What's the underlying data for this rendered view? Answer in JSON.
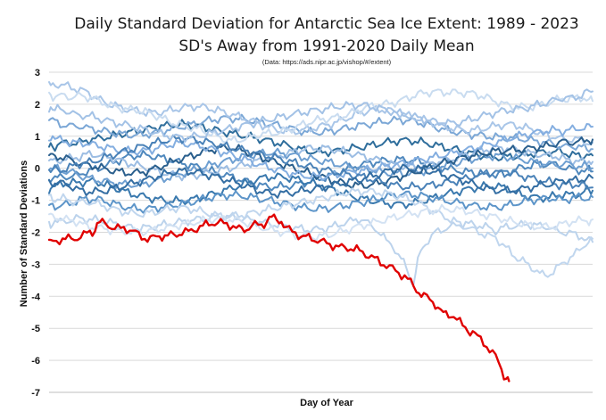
{
  "chart_data": {
    "type": "line",
    "title": "Daily Standard Deviation for Antarctic Sea Ice Extent: 1989 - 2023",
    "subtitle": "SD's Away from 1991-2020 Daily Mean",
    "source": "(Data: https://ads.nipr.ac.jp/vishop/#/extent)",
    "xlabel": "Day of Year",
    "ylabel": "Number of Standard Deviations",
    "xlim": [
      1,
      365
    ],
    "ylim": [
      -7,
      3
    ],
    "yticks": [
      "3",
      "2",
      "1",
      "0",
      "-1",
      "-2",
      "-3",
      "-4",
      "-5",
      "-6",
      "-7"
    ],
    "grid": true,
    "legend": "none",
    "highlight_color": "#e00000",
    "series": [
      {
        "color": "#e00000",
        "highlight": true,
        "values": [
          [
            1,
            -2.35
          ],
          [
            10,
            -2.2
          ],
          [
            20,
            -2.15
          ],
          [
            30,
            -1.95
          ],
          [
            35,
            -1.72
          ],
          [
            45,
            -1.9
          ],
          [
            55,
            -1.95
          ],
          [
            65,
            -2.2
          ],
          [
            75,
            -2.1
          ],
          [
            90,
            -2.0
          ],
          [
            100,
            -1.9
          ],
          [
            110,
            -1.75
          ],
          [
            120,
            -1.78
          ],
          [
            130,
            -1.95
          ],
          [
            135,
            -1.8
          ],
          [
            145,
            -1.7
          ],
          [
            150,
            -1.55
          ],
          [
            155,
            -1.62
          ],
          [
            160,
            -1.85
          ],
          [
            168,
            -2.05
          ],
          [
            175,
            -2.2
          ],
          [
            185,
            -2.35
          ],
          [
            195,
            -2.5
          ],
          [
            205,
            -2.55
          ],
          [
            215,
            -2.75
          ],
          [
            225,
            -3.0
          ],
          [
            235,
            -3.25
          ],
          [
            245,
            -3.65
          ],
          [
            252,
            -4.0
          ],
          [
            258,
            -4.2
          ],
          [
            265,
            -4.5
          ],
          [
            272,
            -4.65
          ],
          [
            278,
            -4.95
          ],
          [
            283,
            -5.05
          ],
          [
            288,
            -5.3
          ],
          [
            292,
            -5.45
          ],
          [
            296,
            -5.7
          ],
          [
            300,
            -5.9
          ],
          [
            304,
            -6.25
          ],
          [
            307,
            -6.55
          ],
          [
            309,
            -6.65
          ]
        ]
      },
      {
        "color": "#2f6e9c",
        "values": [
          [
            1,
            0.7
          ],
          [
            30,
            0.9
          ],
          [
            60,
            1.2
          ],
          [
            90,
            1.4
          ],
          [
            120,
            1.1
          ],
          [
            150,
            0.8
          ],
          [
            180,
            0.5
          ],
          [
            210,
            0.7
          ],
          [
            240,
            0.9
          ],
          [
            270,
            0.6
          ],
          [
            300,
            0.3
          ],
          [
            330,
            0.5
          ],
          [
            365,
            0.4
          ]
        ]
      },
      {
        "color": "#4f88bd",
        "values": [
          [
            1,
            -0.3
          ],
          [
            30,
            -0.1
          ],
          [
            60,
            0.4
          ],
          [
            90,
            0.2
          ],
          [
            120,
            -0.2
          ],
          [
            150,
            -0.6
          ],
          [
            180,
            -0.4
          ],
          [
            210,
            0.1
          ],
          [
            240,
            0.3
          ],
          [
            270,
            0.0
          ],
          [
            300,
            -0.2
          ],
          [
            330,
            0.1
          ],
          [
            365,
            -0.1
          ]
        ]
      },
      {
        "color": "#7ba7d6",
        "values": [
          [
            1,
            1.5
          ],
          [
            30,
            1.2
          ],
          [
            60,
            1.0
          ],
          [
            90,
            1.3
          ],
          [
            120,
            1.6
          ],
          [
            150,
            1.4
          ],
          [
            180,
            1.1
          ],
          [
            210,
            1.3
          ],
          [
            240,
            1.5
          ],
          [
            270,
            1.2
          ],
          [
            300,
            1.0
          ],
          [
            330,
            0.8
          ],
          [
            365,
            0.6
          ]
        ]
      },
      {
        "color": "#a9c6e8",
        "values": [
          [
            1,
            2.6
          ],
          [
            20,
            2.5
          ],
          [
            40,
            2.0
          ],
          [
            70,
            1.7
          ],
          [
            100,
            1.9
          ],
          [
            130,
            1.6
          ],
          [
            160,
            1.2
          ],
          [
            190,
            1.4
          ],
          [
            220,
            1.8
          ],
          [
            250,
            1.5
          ],
          [
            280,
            1.2
          ],
          [
            310,
            1.4
          ],
          [
            340,
            1.0
          ],
          [
            365,
            0.8
          ]
        ]
      },
      {
        "color": "#c9dcf0",
        "values": [
          [
            1,
            2.3
          ],
          [
            25,
            2.2
          ],
          [
            50,
            1.9
          ],
          [
            75,
            1.6
          ],
          [
            100,
            1.2
          ],
          [
            125,
            0.9
          ],
          [
            150,
            1.1
          ],
          [
            175,
            1.4
          ],
          [
            200,
            1.7
          ],
          [
            225,
            2.0
          ],
          [
            250,
            2.3
          ],
          [
            275,
            2.4
          ],
          [
            300,
            2.1
          ],
          [
            325,
            1.9
          ],
          [
            350,
            2.2
          ],
          [
            365,
            2.1
          ]
        ]
      },
      {
        "color": "#3a79ae",
        "values": [
          [
            1,
            -0.6
          ],
          [
            30,
            -0.4
          ],
          [
            60,
            -0.8
          ],
          [
            90,
            -1.0
          ],
          [
            120,
            -0.7
          ],
          [
            150,
            -0.3
          ],
          [
            180,
            -0.5
          ],
          [
            210,
            -0.9
          ],
          [
            240,
            -1.1
          ],
          [
            270,
            -0.8
          ],
          [
            300,
            -0.6
          ],
          [
            330,
            -0.9
          ],
          [
            365,
            -0.7
          ]
        ]
      },
      {
        "color": "#9cbde3",
        "values": [
          [
            1,
            0.2
          ],
          [
            30,
            0.4
          ],
          [
            60,
            0.1
          ],
          [
            90,
            -0.2
          ],
          [
            120,
            0.0
          ],
          [
            150,
            0.3
          ],
          [
            180,
            0.6
          ],
          [
            210,
            0.4
          ],
          [
            240,
            0.1
          ],
          [
            270,
            0.3
          ],
          [
            300,
            0.6
          ],
          [
            330,
            0.4
          ],
          [
            365,
            0.2
          ]
        ]
      },
      {
        "color": "#5d95c9",
        "values": [
          [
            1,
            -1.2
          ],
          [
            30,
            -1.0
          ],
          [
            60,
            -1.3
          ],
          [
            90,
            -1.1
          ],
          [
            120,
            -0.8
          ],
          [
            150,
            -1.0
          ],
          [
            180,
            -1.3
          ],
          [
            210,
            -1.1
          ],
          [
            240,
            -0.8
          ],
          [
            270,
            -1.0
          ],
          [
            300,
            -1.2
          ],
          [
            330,
            -1.0
          ],
          [
            365,
            -0.9
          ]
        ]
      },
      {
        "color": "#bcd3ec",
        "values": [
          [
            1,
            -1.7
          ],
          [
            30,
            -1.6
          ],
          [
            60,
            -1.9
          ],
          [
            90,
            -1.7
          ],
          [
            120,
            -1.5
          ],
          [
            150,
            -1.7
          ],
          [
            180,
            -1.9
          ],
          [
            210,
            -1.6
          ],
          [
            230,
            -2.4
          ],
          [
            240,
            -3.1
          ],
          [
            245,
            -3.55
          ],
          [
            250,
            -2.6
          ],
          [
            260,
            -2.0
          ],
          [
            280,
            -1.7
          ],
          [
            300,
            -1.9
          ],
          [
            330,
            -1.8
          ],
          [
            365,
            -2.3
          ]
        ]
      },
      {
        "color": "#6e9fd1",
        "values": [
          [
            1,
            0.0
          ],
          [
            30,
            -0.3
          ],
          [
            60,
            -0.5
          ],
          [
            90,
            -0.2
          ],
          [
            120,
            0.2
          ],
          [
            150,
            0.5
          ],
          [
            180,
            0.3
          ],
          [
            210,
            0.0
          ],
          [
            240,
            -0.2
          ],
          [
            270,
            0.1
          ],
          [
            300,
            0.4
          ],
          [
            330,
            0.2
          ],
          [
            365,
            0.0
          ]
        ]
      },
      {
        "color": "#2a5f8d",
        "values": [
          [
            1,
            0.4
          ],
          [
            30,
            0.1
          ],
          [
            60,
            -0.1
          ],
          [
            90,
            0.3
          ],
          [
            120,
            0.6
          ],
          [
            150,
            0.2
          ],
          [
            180,
            -0.2
          ],
          [
            210,
            -0.5
          ],
          [
            240,
            -0.2
          ],
          [
            270,
            0.2
          ],
          [
            300,
            0.5
          ],
          [
            330,
            0.7
          ],
          [
            365,
            0.9
          ]
        ]
      },
      {
        "color": "#c0d6ee",
        "values": [
          [
            1,
            -0.9
          ],
          [
            30,
            -1.1
          ],
          [
            60,
            -1.4
          ],
          [
            90,
            -1.2
          ],
          [
            120,
            -1.5
          ],
          [
            150,
            -1.3
          ],
          [
            180,
            -1.0
          ],
          [
            210,
            -0.7
          ],
          [
            240,
            -0.9
          ],
          [
            270,
            -1.6
          ],
          [
            300,
            -2.2
          ],
          [
            320,
            -3.0
          ],
          [
            335,
            -3.3
          ],
          [
            350,
            -2.8
          ],
          [
            365,
            -2.2
          ]
        ]
      },
      {
        "color": "#84aee0",
        "values": [
          [
            1,
            1.0
          ],
          [
            30,
            0.7
          ],
          [
            60,
            0.5
          ],
          [
            90,
            0.8
          ],
          [
            120,
            0.5
          ],
          [
            150,
            0.0
          ],
          [
            180,
            -0.3
          ],
          [
            210,
            -0.1
          ],
          [
            240,
            0.2
          ],
          [
            270,
            0.5
          ],
          [
            300,
            0.8
          ],
          [
            330,
            1.1
          ],
          [
            365,
            1.3
          ]
        ]
      },
      {
        "color": "#4a82b8",
        "values": [
          [
            1,
            -0.1
          ],
          [
            30,
            0.2
          ],
          [
            60,
            0.6
          ],
          [
            90,
            0.9
          ],
          [
            120,
            0.7
          ],
          [
            150,
            0.4
          ],
          [
            180,
            0.0
          ],
          [
            210,
            -0.3
          ],
          [
            240,
            -0.6
          ],
          [
            270,
            -0.4
          ],
          [
            300,
            -0.1
          ],
          [
            330,
            -0.4
          ],
          [
            365,
            -0.6
          ]
        ]
      },
      {
        "color": "#d3e2f3",
        "values": [
          [
            1,
            -1.5
          ],
          [
            30,
            -1.8
          ],
          [
            60,
            -2.0
          ],
          [
            90,
            -1.8
          ],
          [
            120,
            -1.6
          ],
          [
            150,
            -1.9
          ],
          [
            180,
            -2.1
          ],
          [
            210,
            -1.8
          ],
          [
            240,
            -1.5
          ],
          [
            270,
            -1.3
          ],
          [
            300,
            -1.5
          ],
          [
            330,
            -1.8
          ],
          [
            365,
            -1.6
          ]
        ]
      },
      {
        "color": "#346ea3",
        "values": [
          [
            1,
            -0.4
          ],
          [
            30,
            -0.7
          ],
          [
            60,
            -0.4
          ],
          [
            90,
            -0.1
          ],
          [
            120,
            -0.4
          ],
          [
            150,
            -0.8
          ],
          [
            180,
            -0.6
          ],
          [
            210,
            -0.3
          ],
          [
            240,
            0.0
          ],
          [
            270,
            -0.3
          ],
          [
            300,
            -0.7
          ],
          [
            330,
            -0.5
          ],
          [
            365,
            -0.3
          ]
        ]
      },
      {
        "color": "#a3c2e6",
        "values": [
          [
            1,
            1.9
          ],
          [
            30,
            1.6
          ],
          [
            60,
            1.3
          ],
          [
            90,
            1.0
          ],
          [
            120,
            1.2
          ],
          [
            150,
            1.5
          ],
          [
            180,
            1.8
          ],
          [
            210,
            2.0
          ],
          [
            240,
            1.7
          ],
          [
            270,
            1.4
          ],
          [
            300,
            1.7
          ],
          [
            330,
            2.0
          ],
          [
            365,
            2.4
          ]
        ]
      }
    ]
  }
}
